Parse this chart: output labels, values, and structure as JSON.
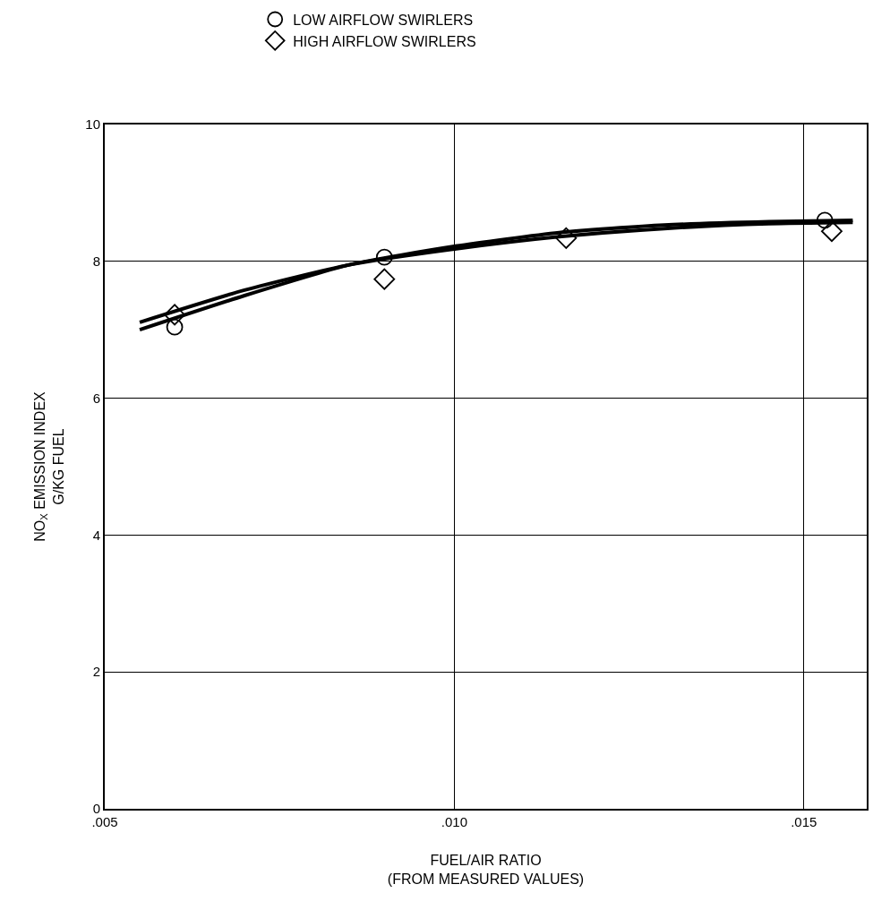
{
  "chart_data": {
    "type": "scatter",
    "xlabel": "FUEL/AIR RATIO\n(FROM MEASURED VALUES)",
    "ylabel": "NO$_{X}$ EMISSION INDEX\nG/KG FUEL",
    "xlim": [
      0.005,
      0.0159
    ],
    "xticks": [
      {
        "value": 0.005,
        "label": ".005"
      },
      {
        "value": 0.01,
        "label": ".010"
      },
      {
        "value": 0.015,
        "label": ".015"
      }
    ],
    "ylim": [
      0,
      10
    ],
    "yticks": [
      0,
      2,
      4,
      6,
      8,
      10
    ],
    "grid": true,
    "legend": "top",
    "series": [
      {
        "name": "LOW AIRFLOW SWIRLERS",
        "color": "#000000",
        "marker": "circle",
        "x": [
          0.006,
          0.009,
          0.0153
        ],
        "values": [
          7.04,
          8.06,
          8.6
        ]
      },
      {
        "name": "HIGH AIRFLOW SWIRLERS",
        "color": "#000000",
        "marker": "diamond",
        "x": [
          0.006,
          0.009,
          0.0116,
          0.0154
        ],
        "values": [
          7.22,
          7.74,
          8.34,
          8.44
        ]
      },
      {
        "type": "line",
        "color": "#000000",
        "marker": "none",
        "line_style": "solid",
        "x": [
          0.0055,
          0.007,
          0.0085,
          0.01,
          0.0115,
          0.013,
          0.0145,
          0.0157
        ],
        "values": [
          7.0,
          7.5,
          7.95,
          8.22,
          8.42,
          8.53,
          8.58,
          8.6
        ]
      },
      {
        "type": "line",
        "color": "#000000",
        "marker": "none",
        "line_style": "solid",
        "x": [
          0.0055,
          0.007,
          0.0085,
          0.01,
          0.0115,
          0.013,
          0.0145,
          0.0157
        ],
        "values": [
          7.11,
          7.58,
          7.95,
          8.18,
          8.36,
          8.48,
          8.55,
          8.57
        ]
      }
    ]
  }
}
